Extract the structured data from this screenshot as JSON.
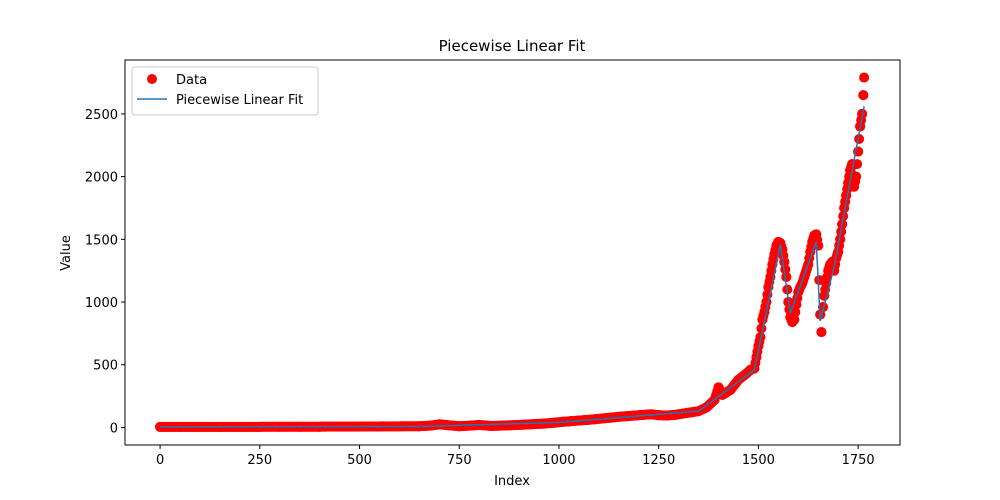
{
  "chart_data": {
    "type": "scatter",
    "title": "Piecewise Linear Fit",
    "xlabel": "Index",
    "ylabel": "Value",
    "xlim": [
      -88,
      1855
    ],
    "ylim": [
      -140,
      2930
    ],
    "xticks": [
      0,
      250,
      500,
      750,
      1000,
      1250,
      1500,
      1750
    ],
    "yticks": [
      0,
      500,
      1000,
      1500,
      2000,
      2500
    ],
    "grid": false,
    "legend_position": "top-left",
    "colors": {
      "data": "#ff0000",
      "fit": "#1f77b4"
    },
    "series": [
      {
        "name": "Data",
        "kind": "scatter",
        "points": [
          [
            0,
            5
          ],
          [
            50,
            5
          ],
          [
            100,
            5
          ],
          [
            150,
            5
          ],
          [
            200,
            5
          ],
          [
            250,
            5
          ],
          [
            300,
            6
          ],
          [
            350,
            6
          ],
          [
            400,
            6
          ],
          [
            450,
            7
          ],
          [
            500,
            7
          ],
          [
            550,
            8
          ],
          [
            600,
            9
          ],
          [
            650,
            10
          ],
          [
            680,
            15
          ],
          [
            700,
            25
          ],
          [
            720,
            18
          ],
          [
            750,
            10
          ],
          [
            780,
            15
          ],
          [
            800,
            20
          ],
          [
            830,
            12
          ],
          [
            860,
            15
          ],
          [
            900,
            20
          ],
          [
            930,
            25
          ],
          [
            960,
            30
          ],
          [
            990,
            38
          ],
          [
            1010,
            45
          ],
          [
            1030,
            50
          ],
          [
            1050,
            55
          ],
          [
            1070,
            60
          ],
          [
            1090,
            65
          ],
          [
            1110,
            72
          ],
          [
            1130,
            78
          ],
          [
            1150,
            85
          ],
          [
            1170,
            90
          ],
          [
            1190,
            95
          ],
          [
            1210,
            100
          ],
          [
            1230,
            105
          ],
          [
            1250,
            98
          ],
          [
            1270,
            95
          ],
          [
            1290,
            100
          ],
          [
            1310,
            110
          ],
          [
            1330,
            120
          ],
          [
            1350,
            130
          ],
          [
            1370,
            160
          ],
          [
            1390,
            220
          ],
          [
            1400,
            320
          ],
          [
            1410,
            260
          ],
          [
            1430,
            300
          ],
          [
            1450,
            380
          ],
          [
            1470,
            430
          ],
          [
            1480,
            460
          ],
          [
            1490,
            470
          ],
          [
            1495,
            560
          ],
          [
            1500,
            650
          ],
          [
            1505,
            720
          ],
          [
            1510,
            860
          ],
          [
            1515,
            920
          ],
          [
            1520,
            1000
          ],
          [
            1525,
            1120
          ],
          [
            1530,
            1200
          ],
          [
            1535,
            1300
          ],
          [
            1540,
            1380
          ],
          [
            1545,
            1450
          ],
          [
            1550,
            1480
          ],
          [
            1555,
            1470
          ],
          [
            1560,
            1420
          ],
          [
            1565,
            1320
          ],
          [
            1570,
            1200
          ],
          [
            1575,
            1000
          ],
          [
            1580,
            880
          ],
          [
            1585,
            840
          ],
          [
            1590,
            860
          ],
          [
            1595,
            980
          ],
          [
            1600,
            1080
          ],
          [
            1605,
            1120
          ],
          [
            1610,
            1150
          ],
          [
            1615,
            1200
          ],
          [
            1620,
            1250
          ],
          [
            1625,
            1300
          ],
          [
            1630,
            1400
          ],
          [
            1635,
            1480
          ],
          [
            1640,
            1530
          ],
          [
            1645,
            1540
          ],
          [
            1650,
            1450
          ],
          [
            1655,
            900
          ],
          [
            1658,
            760
          ],
          [
            1662,
            960
          ],
          [
            1665,
            1050
          ],
          [
            1670,
            1150
          ],
          [
            1675,
            1250
          ],
          [
            1680,
            1300
          ],
          [
            1685,
            1320
          ],
          [
            1690,
            1250
          ],
          [
            1695,
            1350
          ],
          [
            1700,
            1400
          ],
          [
            1705,
            1500
          ],
          [
            1710,
            1620
          ],
          [
            1715,
            1750
          ],
          [
            1720,
            1850
          ],
          [
            1725,
            1950
          ],
          [
            1730,
            2050
          ],
          [
            1735,
            2100
          ],
          [
            1740,
            1920
          ],
          [
            1745,
            2000
          ],
          [
            1750,
            2200
          ],
          [
            1755,
            2400
          ],
          [
            1760,
            2500
          ],
          [
            1763,
            2650
          ],
          [
            1765,
            2790
          ]
        ]
      },
      {
        "name": "Piecewise Linear Fit",
        "kind": "line",
        "points": [
          [
            0,
            5
          ],
          [
            650,
            8
          ],
          [
            1000,
            40
          ],
          [
            1350,
            130
          ],
          [
            1490,
            460
          ],
          [
            1555,
            1460
          ],
          [
            1580,
            910
          ],
          [
            1645,
            1480
          ],
          [
            1655,
            850
          ],
          [
            1690,
            1280
          ],
          [
            1765,
            2560
          ]
        ]
      }
    ]
  }
}
